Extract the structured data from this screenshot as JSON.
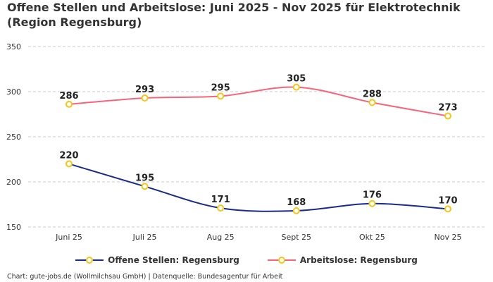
{
  "title": "Offene Stellen und Arbeitslose: Juni 2025 - Nov 2025 für Elektrotechnik (Region Regensburg)",
  "footer": "Chart: gute-jobs.de (Wollmilchsau GmbH) | Datenquelle: Bundesagentur für Arbeit",
  "chart_data": {
    "type": "line",
    "title": "Offene Stellen und Arbeitslose: Juni 2025 - Nov 2025 für Elektrotechnik (Region Regensburg)",
    "categories": [
      "Juni 25",
      "Juli 25",
      "Aug 25",
      "Sept 25",
      "Okt 25",
      "Nov 25"
    ],
    "ylim": [
      150,
      350
    ],
    "yticks": [
      150,
      200,
      250,
      300,
      350
    ],
    "grid": true,
    "legend": "bottom",
    "marker_color": "#f5c518",
    "series": [
      {
        "name": "Offene Stellen: Regensburg",
        "color": "#1a2a8c",
        "values": [
          220,
          195,
          171,
          168,
          176,
          170
        ]
      },
      {
        "name": "Arbeitslose: Regensburg",
        "color": "#f7647a",
        "values": [
          286,
          293,
          295,
          305,
          288,
          273
        ]
      }
    ]
  }
}
